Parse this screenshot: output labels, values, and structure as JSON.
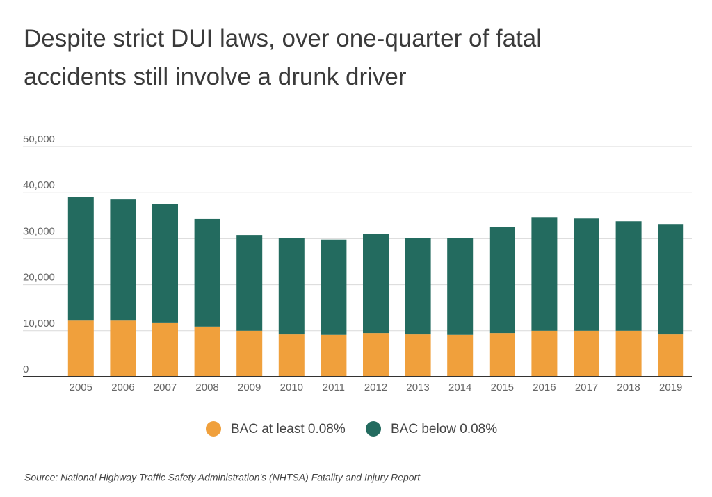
{
  "chart_data": {
    "type": "stacked-bar",
    "title": [
      "Despite strict DUI laws, over one-quarter of fatal",
      "accidents still involve a drunk driver"
    ],
    "source": "Source:  National Highway Traffic Safety Administration's (NHTSA) Fatality and Injury Report",
    "categories": [
      "2005",
      "2006",
      "2007",
      "2008",
      "2009",
      "2010",
      "2011",
      "2012",
      "2013",
      "2014",
      "2015",
      "2016",
      "2017",
      "2018",
      "2019"
    ],
    "series": [
      {
        "name": "BAC at least 0.08%",
        "color": "#f0a03c",
        "values": [
          12200,
          12200,
          11800,
          10900,
          10000,
          9200,
          9100,
          9500,
          9200,
          9100,
          9500,
          10000,
          10000,
          10000,
          9200
        ]
      },
      {
        "name": "BAC below 0.08%",
        "color": "#236b5f",
        "values": [
          26900,
          26300,
          25700,
          23400,
          20800,
          21000,
          20700,
          21600,
          21000,
          21000,
          23100,
          24700,
          24400,
          23800,
          24000
        ]
      }
    ],
    "ylim": [
      0,
      50000
    ],
    "yticks": [
      0,
      {
        "value": 10000,
        "label": "10,000"
      },
      {
        "value": 20000,
        "label": "20,000"
      },
      {
        "value": 30000,
        "label": "30,000"
      },
      {
        "value": 40000,
        "label": "40,000"
      },
      {
        "value": 50000,
        "label": "50,000"
      }
    ],
    "grid": true
  }
}
